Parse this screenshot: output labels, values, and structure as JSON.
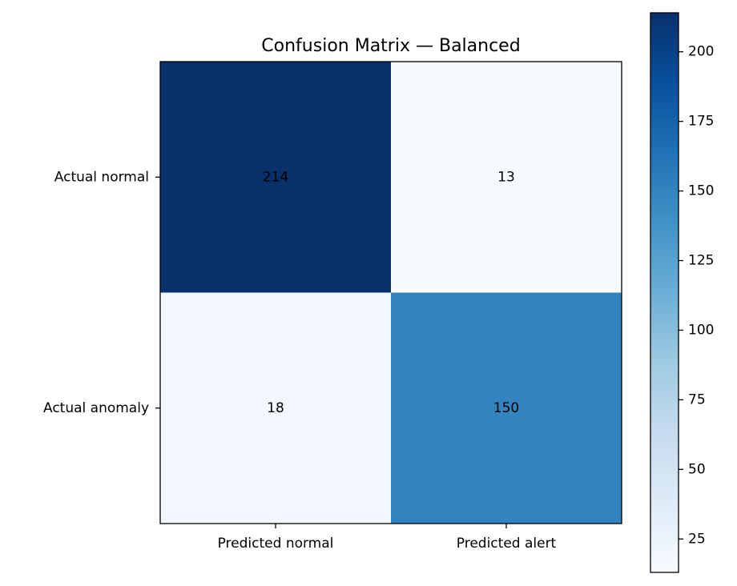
{
  "chart_data": {
    "type": "heatmap",
    "title": "Confusion Matrix — Balanced",
    "x_categories": [
      "Predicted normal",
      "Predicted alert"
    ],
    "y_categories": [
      "Actual normal",
      "Actual anomaly"
    ],
    "values": [
      [
        214,
        13
      ],
      [
        18,
        150
      ]
    ],
    "colormap": "Blues",
    "colorbar": {
      "vmin": 13,
      "vmax": 214,
      "ticks": [
        25,
        50,
        75,
        100,
        125,
        150,
        175,
        200
      ]
    }
  }
}
